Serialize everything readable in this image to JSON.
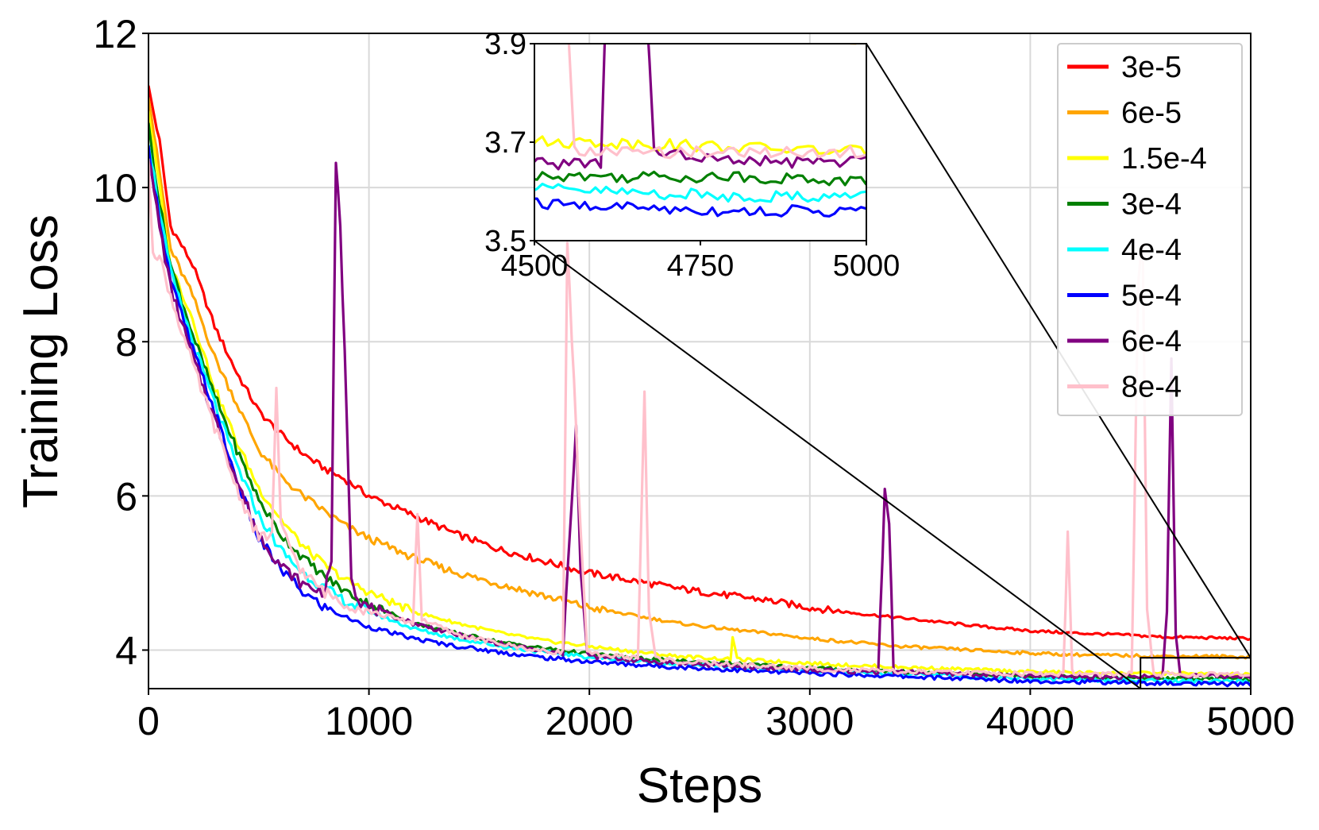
{
  "chart_data": {
    "type": "line",
    "title": "",
    "xlabel": "Steps",
    "ylabel": "Training Loss",
    "xlim": [
      0,
      5000
    ],
    "ylim": [
      3.5,
      12
    ],
    "xticks": [
      "0",
      "1000",
      "2000",
      "3000",
      "4000",
      "5000"
    ],
    "yticks": [
      "4",
      "6",
      "8",
      "10",
      "12"
    ],
    "grid": true,
    "legend_position": "top-right",
    "series": [
      {
        "name": "3e-5",
        "color": "#ff0000",
        "points": [
          [
            0,
            11.3
          ],
          [
            50,
            10.6
          ],
          [
            100,
            9.5
          ],
          [
            200,
            9.0
          ],
          [
            300,
            8.2
          ],
          [
            400,
            7.6
          ],
          [
            500,
            7.1
          ],
          [
            600,
            6.8
          ],
          [
            700,
            6.55
          ],
          [
            800,
            6.35
          ],
          [
            900,
            6.2
          ],
          [
            1000,
            6.0
          ],
          [
            1200,
            5.75
          ],
          [
            1400,
            5.5
          ],
          [
            1600,
            5.3
          ],
          [
            1800,
            5.15
          ],
          [
            2000,
            5.0
          ],
          [
            2200,
            4.9
          ],
          [
            2400,
            4.8
          ],
          [
            2600,
            4.72
          ],
          [
            2800,
            4.65
          ],
          [
            3000,
            4.55
          ],
          [
            3200,
            4.48
          ],
          [
            3400,
            4.42
          ],
          [
            3600,
            4.36
          ],
          [
            3800,
            4.3
          ],
          [
            4000,
            4.25
          ],
          [
            4200,
            4.22
          ],
          [
            4400,
            4.2
          ],
          [
            4600,
            4.17
          ],
          [
            4800,
            4.16
          ],
          [
            5000,
            4.15
          ]
        ]
      },
      {
        "name": "6e-5",
        "color": "#ffa500",
        "points": [
          [
            0,
            11.2
          ],
          [
            50,
            10.2
          ],
          [
            100,
            9.2
          ],
          [
            200,
            8.6
          ],
          [
            300,
            7.8
          ],
          [
            400,
            7.2
          ],
          [
            500,
            6.6
          ],
          [
            600,
            6.25
          ],
          [
            700,
            6.0
          ],
          [
            800,
            5.8
          ],
          [
            900,
            5.6
          ],
          [
            1000,
            5.45
          ],
          [
            1200,
            5.2
          ],
          [
            1400,
            5.0
          ],
          [
            1600,
            4.85
          ],
          [
            1800,
            4.7
          ],
          [
            2000,
            4.55
          ],
          [
            2200,
            4.45
          ],
          [
            2400,
            4.35
          ],
          [
            2600,
            4.28
          ],
          [
            2800,
            4.22
          ],
          [
            3000,
            4.15
          ],
          [
            3200,
            4.1
          ],
          [
            3400,
            4.05
          ],
          [
            3600,
            4.02
          ],
          [
            3800,
            3.99
          ],
          [
            4000,
            3.96
          ],
          [
            4200,
            3.94
          ],
          [
            4400,
            3.93
          ],
          [
            4600,
            3.92
          ],
          [
            4800,
            3.92
          ],
          [
            5000,
            3.91
          ]
        ]
      },
      {
        "name": "1.5e-4",
        "color": "#ffff00",
        "points": [
          [
            0,
            11.0
          ],
          [
            50,
            10.0
          ],
          [
            100,
            9.0
          ],
          [
            200,
            8.3
          ],
          [
            300,
            7.4
          ],
          [
            400,
            6.7
          ],
          [
            500,
            6.1
          ],
          [
            600,
            5.7
          ],
          [
            700,
            5.35
          ],
          [
            800,
            5.1
          ],
          [
            900,
            4.9
          ],
          [
            1000,
            4.75
          ],
          [
            1200,
            4.5
          ],
          [
            1400,
            4.35
          ],
          [
            1600,
            4.22
          ],
          [
            1800,
            4.12
          ],
          [
            2000,
            4.05
          ],
          [
            2200,
            3.98
          ],
          [
            2400,
            3.92
          ],
          [
            2640,
            3.88
          ],
          [
            2650,
            4.18
          ],
          [
            2670,
            3.88
          ],
          [
            2800,
            3.86
          ],
          [
            3000,
            3.83
          ],
          [
            3200,
            3.8
          ],
          [
            3400,
            3.78
          ],
          [
            3600,
            3.76
          ],
          [
            3800,
            3.74
          ],
          [
            4000,
            3.72
          ],
          [
            4200,
            3.71
          ],
          [
            4400,
            3.7
          ],
          [
            4600,
            3.7
          ],
          [
            4800,
            3.69
          ],
          [
            5000,
            3.68
          ]
        ]
      },
      {
        "name": "3e-4",
        "color": "#008000",
        "points": [
          [
            0,
            10.8
          ],
          [
            50,
            9.8
          ],
          [
            100,
            9.0
          ],
          [
            200,
            8.1
          ],
          [
            300,
            7.3
          ],
          [
            400,
            6.6
          ],
          [
            500,
            5.95
          ],
          [
            600,
            5.5
          ],
          [
            700,
            5.2
          ],
          [
            800,
            4.95
          ],
          [
            900,
            4.75
          ],
          [
            1000,
            4.6
          ],
          [
            1200,
            4.35
          ],
          [
            1400,
            4.22
          ],
          [
            1600,
            4.1
          ],
          [
            1800,
            4.02
          ],
          [
            2000,
            3.95
          ],
          [
            2200,
            3.9
          ],
          [
            2400,
            3.86
          ],
          [
            2600,
            3.83
          ],
          [
            2800,
            3.8
          ],
          [
            3000,
            3.77
          ],
          [
            3200,
            3.74
          ],
          [
            3400,
            3.72
          ],
          [
            3600,
            3.7
          ],
          [
            3800,
            3.68
          ],
          [
            4000,
            3.66
          ],
          [
            4200,
            3.65
          ],
          [
            4400,
            3.64
          ],
          [
            4600,
            3.63
          ],
          [
            4800,
            3.63
          ],
          [
            5000,
            3.62
          ]
        ]
      },
      {
        "name": "4e-4",
        "color": "#00ffff",
        "points": [
          [
            0,
            10.6
          ],
          [
            50,
            9.7
          ],
          [
            100,
            8.9
          ],
          [
            200,
            8.0
          ],
          [
            300,
            7.2
          ],
          [
            400,
            6.4
          ],
          [
            500,
            5.75
          ],
          [
            600,
            5.3
          ],
          [
            700,
            5.0
          ],
          [
            800,
            4.8
          ],
          [
            900,
            4.62
          ],
          [
            1000,
            4.5
          ],
          [
            1200,
            4.28
          ],
          [
            1400,
            4.15
          ],
          [
            1600,
            4.05
          ],
          [
            1800,
            3.97
          ],
          [
            2000,
            3.91
          ],
          [
            2200,
            3.86
          ],
          [
            2400,
            3.82
          ],
          [
            2600,
            3.79
          ],
          [
            2800,
            3.76
          ],
          [
            3000,
            3.73
          ],
          [
            3200,
            3.71
          ],
          [
            3400,
            3.69
          ],
          [
            3600,
            3.67
          ],
          [
            3800,
            3.65
          ],
          [
            4000,
            3.63
          ],
          [
            4200,
            3.62
          ],
          [
            4400,
            3.61
          ],
          [
            4600,
            3.6
          ],
          [
            4800,
            3.59
          ],
          [
            5000,
            3.59
          ]
        ]
      },
      {
        "name": "5e-4",
        "color": "#0000ff",
        "points": [
          [
            0,
            10.5
          ],
          [
            50,
            9.6
          ],
          [
            100,
            8.8
          ],
          [
            200,
            7.9
          ],
          [
            300,
            7.1
          ],
          [
            400,
            6.2
          ],
          [
            500,
            5.45
          ],
          [
            600,
            5.05
          ],
          [
            700,
            4.75
          ],
          [
            800,
            4.55
          ],
          [
            900,
            4.42
          ],
          [
            1000,
            4.3
          ],
          [
            1200,
            4.15
          ],
          [
            1400,
            4.05
          ],
          [
            1600,
            3.97
          ],
          [
            1800,
            3.9
          ],
          [
            2000,
            3.85
          ],
          [
            2200,
            3.81
          ],
          [
            2400,
            3.78
          ],
          [
            2600,
            3.75
          ],
          [
            2800,
            3.72
          ],
          [
            3000,
            3.7
          ],
          [
            3200,
            3.68
          ],
          [
            3400,
            3.66
          ],
          [
            3600,
            3.64
          ],
          [
            3800,
            3.62
          ],
          [
            4000,
            3.6
          ],
          [
            4200,
            3.59
          ],
          [
            4400,
            3.58
          ],
          [
            4600,
            3.57
          ],
          [
            4800,
            3.56
          ],
          [
            5000,
            3.56
          ]
        ]
      },
      {
        "name": "6e-4",
        "color": "#800080",
        "points": [
          [
            0,
            10.4
          ],
          [
            50,
            9.5
          ],
          [
            100,
            8.7
          ],
          [
            200,
            7.8
          ],
          [
            300,
            7.0
          ],
          [
            400,
            6.2
          ],
          [
            500,
            5.5
          ],
          [
            600,
            5.1
          ],
          [
            700,
            4.85
          ],
          [
            800,
            4.75
          ],
          [
            830,
            5.2
          ],
          [
            850,
            10.3
          ],
          [
            870,
            9.5
          ],
          [
            900,
            7.0
          ],
          [
            920,
            5.0
          ],
          [
            950,
            4.65
          ],
          [
            1000,
            4.55
          ],
          [
            1200,
            4.35
          ],
          [
            1400,
            4.2
          ],
          [
            1600,
            4.08
          ],
          [
            1800,
            3.98
          ],
          [
            1880,
            3.95
          ],
          [
            1910,
            5.5
          ],
          [
            1940,
            6.9
          ],
          [
            1960,
            5.0
          ],
          [
            1990,
            3.98
          ],
          [
            2000,
            3.92
          ],
          [
            2200,
            3.87
          ],
          [
            2400,
            3.83
          ],
          [
            2600,
            3.8
          ],
          [
            2800,
            3.77
          ],
          [
            3000,
            3.74
          ],
          [
            3200,
            3.72
          ],
          [
            3310,
            3.72
          ],
          [
            3340,
            6.05
          ],
          [
            3360,
            5.7
          ],
          [
            3380,
            3.72
          ],
          [
            3600,
            3.7
          ],
          [
            3800,
            3.68
          ],
          [
            4000,
            3.66
          ],
          [
            4200,
            3.66
          ],
          [
            4400,
            3.65
          ],
          [
            4600,
            3.66
          ],
          [
            4620,
            4.5
          ],
          [
            4640,
            7.8
          ],
          [
            4660,
            4.2
          ],
          [
            4680,
            3.68
          ],
          [
            4800,
            3.66
          ],
          [
            5000,
            3.66
          ]
        ]
      },
      {
        "name": "8e-4",
        "color": "#ffc0cb",
        "points": [
          [
            0,
            10.3
          ],
          [
            20,
            9.2
          ],
          [
            50,
            9.1
          ],
          [
            100,
            8.6
          ],
          [
            200,
            7.7
          ],
          [
            300,
            6.9
          ],
          [
            400,
            6.1
          ],
          [
            500,
            5.45
          ],
          [
            560,
            5.5
          ],
          [
            580,
            7.35
          ],
          [
            600,
            5.6
          ],
          [
            700,
            5.0
          ],
          [
            800,
            4.75
          ],
          [
            900,
            4.6
          ],
          [
            1000,
            4.5
          ],
          [
            1200,
            4.35
          ],
          [
            1220,
            5.8
          ],
          [
            1240,
            4.4
          ],
          [
            1400,
            4.2
          ],
          [
            1600,
            4.08
          ],
          [
            1800,
            3.98
          ],
          [
            1880,
            3.98
          ],
          [
            1900,
            9.3
          ],
          [
            1930,
            7.5
          ],
          [
            1960,
            5.5
          ],
          [
            1990,
            4.0
          ],
          [
            2000,
            3.95
          ],
          [
            2220,
            3.9
          ],
          [
            2250,
            7.35
          ],
          [
            2270,
            4.5
          ],
          [
            2300,
            3.9
          ],
          [
            2400,
            3.85
          ],
          [
            2600,
            3.82
          ],
          [
            2800,
            3.79
          ],
          [
            3000,
            3.76
          ],
          [
            3200,
            3.74
          ],
          [
            3400,
            3.72
          ],
          [
            3600,
            3.71
          ],
          [
            3800,
            3.7
          ],
          [
            4000,
            3.69
          ],
          [
            4150,
            3.69
          ],
          [
            4170,
            5.5
          ],
          [
            4190,
            3.75
          ],
          [
            4200,
            3.69
          ],
          [
            4400,
            3.68
          ],
          [
            4460,
            3.7
          ],
          [
            4490,
            8.8
          ],
          [
            4510,
            9.3
          ],
          [
            4530,
            4.5
          ],
          [
            4560,
            3.68
          ],
          [
            4800,
            3.68
          ],
          [
            5000,
            3.68
          ]
        ]
      }
    ],
    "inset": {
      "xlim": [
        4500,
        5000
      ],
      "ylim": [
        3.5,
        3.9
      ],
      "xticks": [
        "4500",
        "4750",
        "5000"
      ],
      "yticks": [
        "3.5",
        "3.7",
        "3.9"
      ],
      "xtick_values": [
        4500,
        4750,
        5000
      ],
      "ytick_values": [
        3.5,
        3.7,
        3.9
      ]
    }
  }
}
